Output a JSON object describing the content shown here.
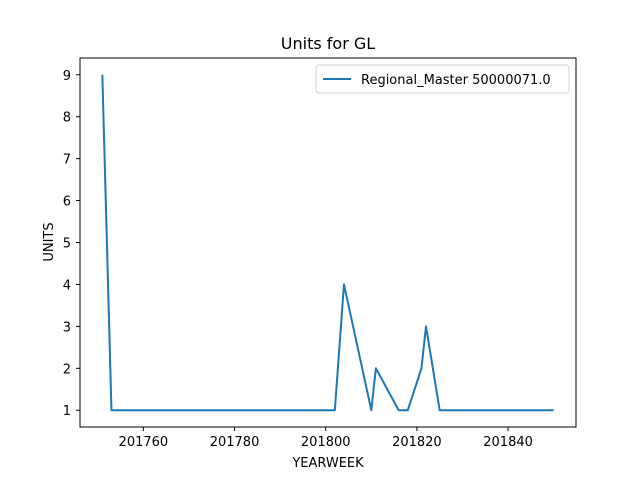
{
  "chart_data": {
    "type": "line",
    "title": "Units for GL",
    "xlabel": "YEARWEEK",
    "ylabel": "UNITS",
    "xlim": [
      201746.1,
      201854.9
    ],
    "ylim": [
      0.6,
      9.4
    ],
    "x_ticks": [
      201760,
      201780,
      201800,
      201820,
      201840
    ],
    "y_ticks": [
      1,
      2,
      3,
      4,
      5,
      6,
      7,
      8,
      9
    ],
    "grid": false,
    "legend": "top-right",
    "series": [
      {
        "name": "Regional_Master 50000071.0",
        "color": "#1f77b4",
        "x": [
          201751,
          201753,
          201802,
          201804,
          201810,
          201811,
          201816,
          201818,
          201821,
          201822,
          201825,
          201850
        ],
        "y": [
          9,
          1,
          1,
          4,
          1,
          2,
          1,
          1,
          2,
          3,
          1,
          1
        ]
      }
    ]
  }
}
